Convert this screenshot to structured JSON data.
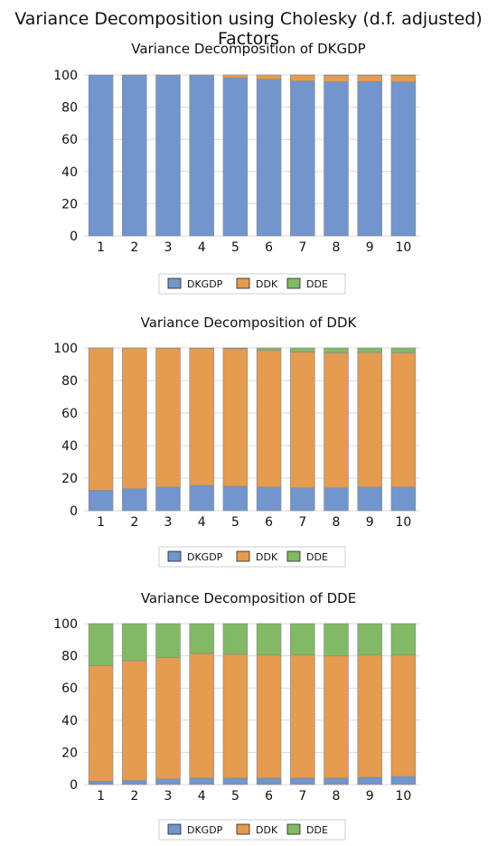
{
  "title": "Variance Decomposition using Cholesky (d.f. adjusted) Factors",
  "colors": {
    "DKGDP": "#7195cc",
    "DDK": "#e59b50",
    "DDE": "#82b964"
  },
  "chart_data": [
    {
      "type": "bar",
      "stacked": true,
      "title": "Variance Decomposition of DKGDP",
      "categories": [
        "1",
        "2",
        "3",
        "4",
        "5",
        "6",
        "7",
        "8",
        "9",
        "10"
      ],
      "ylim": [
        0,
        100
      ],
      "yticks": [
        "0",
        "20",
        "40",
        "60",
        "80",
        "100"
      ],
      "grid": true,
      "legend": "bottom",
      "series": [
        {
          "name": "DKGDP",
          "values": [
            100,
            99.8,
            99.7,
            99.6,
            98.2,
            97.3,
            96.3,
            95.8,
            95.9,
            95.7
          ]
        },
        {
          "name": "DDK",
          "values": [
            0,
            0.2,
            0.3,
            0.4,
            1.8,
            2.7,
            3.6,
            4.0,
            3.9,
            4.0
          ]
        },
        {
          "name": "DDE",
          "values": [
            0,
            0,
            0,
            0,
            0,
            0,
            0.1,
            0.2,
            0.2,
            0.3
          ]
        }
      ]
    },
    {
      "type": "bar",
      "stacked": true,
      "title": "Variance Decomposition of DDK",
      "categories": [
        "1",
        "2",
        "3",
        "4",
        "5",
        "6",
        "7",
        "8",
        "9",
        "10"
      ],
      "ylim": [
        0,
        100
      ],
      "yticks": [
        "0",
        "20",
        "40",
        "60",
        "80",
        "100"
      ],
      "grid": true,
      "legend": "bottom",
      "series": [
        {
          "name": "DKGDP",
          "values": [
            12.5,
            13.5,
            14.5,
            15.5,
            15.0,
            14.5,
            14.0,
            14.0,
            14.5,
            14.5
          ]
        },
        {
          "name": "DDK",
          "values": [
            87.4,
            86.4,
            85.3,
            84.3,
            84.5,
            84.0,
            83.5,
            83.0,
            82.7,
            82.5
          ]
        },
        {
          "name": "DDE",
          "values": [
            0.1,
            0.1,
            0.2,
            0.2,
            0.5,
            1.5,
            2.5,
            3.0,
            2.8,
            3.0
          ]
        }
      ]
    },
    {
      "type": "bar",
      "stacked": true,
      "title": "Variance Decomposition of DDE",
      "categories": [
        "1",
        "2",
        "3",
        "4",
        "5",
        "6",
        "7",
        "8",
        "9",
        "10"
      ],
      "ylim": [
        0,
        100
      ],
      "yticks": [
        "0",
        "20",
        "40",
        "60",
        "80",
        "100"
      ],
      "grid": true,
      "legend": "bottom",
      "series": [
        {
          "name": "DKGDP",
          "values": [
            2.0,
            2.5,
            3.5,
            4.0,
            4.0,
            4.0,
            4.0,
            4.0,
            4.5,
            5.0
          ]
        },
        {
          "name": "DDK",
          "values": [
            72.0,
            74.5,
            75.5,
            77.5,
            77.0,
            76.5,
            76.5,
            76.0,
            76.0,
            75.5
          ]
        },
        {
          "name": "DDE",
          "values": [
            26.0,
            23.0,
            21.0,
            18.5,
            19.0,
            19.5,
            19.5,
            20.0,
            19.5,
            19.5
          ]
        }
      ]
    }
  ]
}
